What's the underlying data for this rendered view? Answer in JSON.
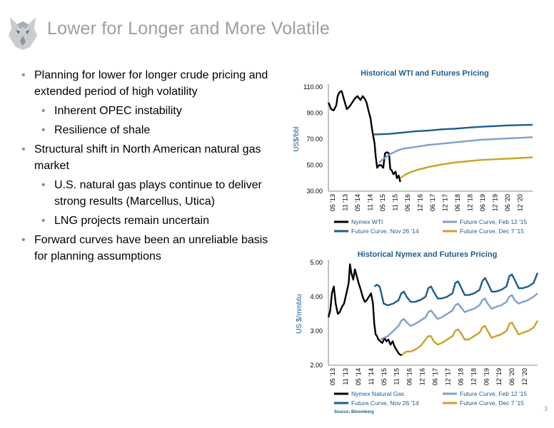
{
  "header": {
    "title": "Lower for Longer and More Volatile"
  },
  "bullets": [
    {
      "level": 1,
      "text": "Planning for lower for longer crude pricing and extended period of high volatility"
    },
    {
      "level": 2,
      "text": "Inherent OPEC instability"
    },
    {
      "level": 2,
      "text": "Resilience of shale"
    },
    {
      "level": 1,
      "text": "Structural shift in North American natural gas market"
    },
    {
      "level": 2,
      "text": "U.S. natural gas plays continue to deliver strong results (Marcellus, Utica)"
    },
    {
      "level": 2,
      "text": "LNG projects remain uncertain"
    },
    {
      "level": 1,
      "text": "Forward curves have been an unreliable basis for planning assumptions"
    }
  ],
  "footer": {
    "source": "Source: Bloomberg",
    "page_number": "3"
  },
  "colors": {
    "black": "#000000",
    "navy": "#1f5c8a",
    "lightblue": "#7f9fc8",
    "gold": "#c9a227",
    "title": "#1f5c8a"
  },
  "chart_data": [
    {
      "type": "line",
      "title": "Historical WTI and Futures Pricing",
      "xlabel": "",
      "ylabel": "US$/bbl",
      "ylim": [
        30,
        110
      ],
      "ytick_labels": [
        "30.00",
        "50.00",
        "70.00",
        "90.00",
        "110.00"
      ],
      "x_labels": [
        "05 '13",
        "11 '13",
        "05 '14",
        "11 '14",
        "05 '15",
        "11 '15",
        "06 '16",
        "12 '16",
        "06 '17",
        "12 '17",
        "06 '18",
        "12 '18",
        "06 '19",
        "12 '19",
        "06 '20",
        "12 '20"
      ],
      "x_range": [
        2013.2,
        2020.95
      ],
      "grid": false,
      "legend": "bottom",
      "series": [
        {
          "name": "Nymex WTI",
          "color": "black",
          "x": [
            2013.2,
            2013.25,
            2013.3,
            2013.4,
            2013.5,
            2013.55,
            2013.62,
            2013.7,
            2013.8,
            2013.9,
            2014.0,
            2014.1,
            2014.2,
            2014.3,
            2014.42,
            2014.5,
            2014.58,
            2014.65,
            2014.72,
            2014.8,
            2014.87,
            2014.95,
            2015.0,
            2015.05,
            2015.12,
            2015.2,
            2015.28,
            2015.35,
            2015.42,
            2015.5,
            2015.55,
            2015.6,
            2015.67,
            2015.75,
            2015.8,
            2015.87,
            2015.93
          ],
          "y": [
            98,
            96,
            93,
            92,
            96,
            103,
            106,
            107,
            100,
            93,
            95,
            98,
            101,
            103,
            100,
            103,
            101,
            98,
            92,
            86,
            76,
            67,
            56,
            48,
            50,
            50,
            48,
            59,
            60,
            59,
            47,
            46,
            43,
            45,
            40,
            42,
            37
          ]
        },
        {
          "name": "Future Curve, Nov 26 '14",
          "color": "navy",
          "x": [
            2014.9,
            2015.5,
            2016,
            2016.5,
            2017,
            2017.5,
            2018,
            2018.5,
            2019,
            2019.5,
            2020,
            2020.5,
            2020.95
          ],
          "y": [
            73.5,
            74,
            75,
            76,
            76.5,
            77.5,
            78,
            78.8,
            79.5,
            80,
            80.5,
            80.8,
            81
          ]
        },
        {
          "name": "Future Curve, Feb 12 '15",
          "color": "lightblue",
          "x": [
            2015.12,
            2015.3,
            2015.5,
            2015.8,
            2016,
            2016.5,
            2017,
            2017.5,
            2018,
            2018.5,
            2019,
            2019.5,
            2020,
            2020.5,
            2020.95
          ],
          "y": [
            52,
            55,
            58,
            61,
            62.5,
            64,
            65.5,
            66.5,
            67.5,
            68.5,
            69.5,
            70,
            70.5,
            71,
            71.5
          ]
        },
        {
          "name": "Future Curve, Dec 7 '15",
          "color": "gold",
          "x": [
            2015.93,
            2016.1,
            2016.3,
            2016.6,
            2017,
            2017.5,
            2018,
            2018.5,
            2019,
            2019.5,
            2020,
            2020.5,
            2020.95
          ],
          "y": [
            40,
            42.5,
            44.5,
            46.5,
            48.5,
            50.5,
            52,
            53,
            54,
            54.5,
            55,
            55.5,
            56
          ]
        }
      ]
    },
    {
      "type": "line",
      "title": "Historical Nymex and Futures Pricing",
      "xlabel": "",
      "ylabel": "US $/mmbtu",
      "ylim": [
        2,
        5
      ],
      "ytick_labels": [
        "2.00",
        "3.00",
        "4.00",
        "5.00"
      ],
      "x_labels": [
        "05 '13",
        "11 '13",
        "05 '14",
        "11 '14",
        "05 '15",
        "11 '15",
        "06 '16",
        "12 '16",
        "06 '17",
        "12 '17",
        "06 '18",
        "12 '18",
        "06 '19",
        "12 '19",
        "06 '20",
        "12 '20"
      ],
      "x_range": [
        2013.2,
        2020.95
      ],
      "grid": false,
      "legend": "bottom",
      "series": [
        {
          "name": "Nymex Natural Gas",
          "color": "black",
          "x": [
            2013.2,
            2013.27,
            2013.33,
            2013.4,
            2013.47,
            2013.55,
            2013.62,
            2013.7,
            2013.78,
            2013.87,
            2013.95,
            2014.0,
            2014.05,
            2014.12,
            2014.18,
            2014.25,
            2014.32,
            2014.4,
            2014.47,
            2014.55,
            2014.62,
            2014.7,
            2014.78,
            2014.85,
            2014.9,
            2014.95,
            2015.0,
            2015.05,
            2015.12,
            2015.2,
            2015.28,
            2015.35,
            2015.42,
            2015.5,
            2015.58,
            2015.65,
            2015.72,
            2015.8,
            2015.87,
            2015.93
          ],
          "y": [
            3.4,
            3.6,
            4.1,
            4.3,
            3.8,
            3.5,
            3.55,
            3.7,
            3.8,
            4.1,
            4.4,
            4.95,
            4.7,
            4.5,
            4.8,
            4.6,
            4.4,
            4.2,
            4.0,
            3.85,
            3.9,
            4.0,
            4.1,
            3.8,
            3.2,
            2.9,
            2.85,
            2.75,
            2.7,
            2.65,
            2.8,
            2.7,
            2.75,
            2.6,
            2.7,
            2.55,
            2.45,
            2.35,
            2.3,
            2.3
          ]
        },
        {
          "name": "Future Curve, Nov 26 '14",
          "color": "navy",
          "x": [
            2014.9,
            2015.0,
            2015.1,
            2015.25,
            2015.4,
            2015.6,
            2015.8,
            2015.9,
            2016.0,
            2016.1,
            2016.25,
            2016.4,
            2016.6,
            2016.8,
            2016.9,
            2017.0,
            2017.1,
            2017.25,
            2017.4,
            2017.6,
            2017.8,
            2017.9,
            2018.0,
            2018.1,
            2018.25,
            2018.4,
            2018.6,
            2018.8,
            2018.9,
            2019.0,
            2019.1,
            2019.25,
            2019.4,
            2019.6,
            2019.8,
            2019.9,
            2020.0,
            2020.1,
            2020.25,
            2020.4,
            2020.6,
            2020.8,
            2020.95
          ],
          "y": [
            4.3,
            4.35,
            4.3,
            3.8,
            3.75,
            3.8,
            3.9,
            4.1,
            4.15,
            4.0,
            3.85,
            3.85,
            3.9,
            4.0,
            4.25,
            4.3,
            4.15,
            3.95,
            3.95,
            4.0,
            4.1,
            4.4,
            4.45,
            4.3,
            4.05,
            4.05,
            4.1,
            4.2,
            4.45,
            4.55,
            4.4,
            4.15,
            4.15,
            4.2,
            4.3,
            4.6,
            4.65,
            4.5,
            4.25,
            4.25,
            4.3,
            4.4,
            4.7
          ]
        },
        {
          "name": "Future Curve, Feb 12 '15",
          "color": "lightblue",
          "x": [
            2015.12,
            2015.25,
            2015.4,
            2015.6,
            2015.8,
            2015.9,
            2016.0,
            2016.1,
            2016.25,
            2016.4,
            2016.6,
            2016.8,
            2016.9,
            2017.0,
            2017.1,
            2017.25,
            2017.4,
            2017.6,
            2017.8,
            2017.9,
            2018.0,
            2018.1,
            2018.25,
            2018.4,
            2018.6,
            2018.8,
            2018.9,
            2019.0,
            2019.1,
            2019.25,
            2019.4,
            2019.6,
            2019.8,
            2019.9,
            2020.0,
            2020.1,
            2020.25,
            2020.4,
            2020.6,
            2020.8,
            2020.95
          ],
          "y": [
            2.75,
            2.8,
            2.85,
            3.0,
            3.15,
            3.3,
            3.35,
            3.25,
            3.15,
            3.2,
            3.3,
            3.4,
            3.55,
            3.6,
            3.5,
            3.35,
            3.4,
            3.5,
            3.6,
            3.75,
            3.8,
            3.7,
            3.55,
            3.6,
            3.65,
            3.75,
            3.9,
            3.95,
            3.8,
            3.65,
            3.7,
            3.75,
            3.85,
            4.0,
            4.05,
            3.9,
            3.8,
            3.85,
            3.9,
            4.0,
            4.1
          ]
        },
        {
          "name": "Future Curve, Dec 7 '15",
          "color": "gold",
          "x": [
            2015.93,
            2016.0,
            2016.1,
            2016.25,
            2016.4,
            2016.6,
            2016.8,
            2016.9,
            2017.0,
            2017.1,
            2017.25,
            2017.4,
            2017.6,
            2017.8,
            2017.9,
            2018.0,
            2018.1,
            2018.25,
            2018.4,
            2018.6,
            2018.8,
            2018.9,
            2019.0,
            2019.1,
            2019.25,
            2019.4,
            2019.6,
            2019.8,
            2019.9,
            2020.0,
            2020.1,
            2020.25,
            2020.4,
            2020.6,
            2020.8,
            2020.95
          ],
          "y": [
            2.3,
            2.35,
            2.4,
            2.4,
            2.45,
            2.55,
            2.75,
            2.85,
            2.85,
            2.7,
            2.6,
            2.65,
            2.75,
            2.85,
            3.0,
            3.05,
            2.95,
            2.75,
            2.75,
            2.85,
            2.95,
            3.1,
            3.15,
            3.0,
            2.8,
            2.85,
            2.9,
            3.0,
            3.2,
            3.25,
            3.1,
            2.9,
            2.95,
            3.0,
            3.1,
            3.3
          ]
        }
      ]
    }
  ]
}
